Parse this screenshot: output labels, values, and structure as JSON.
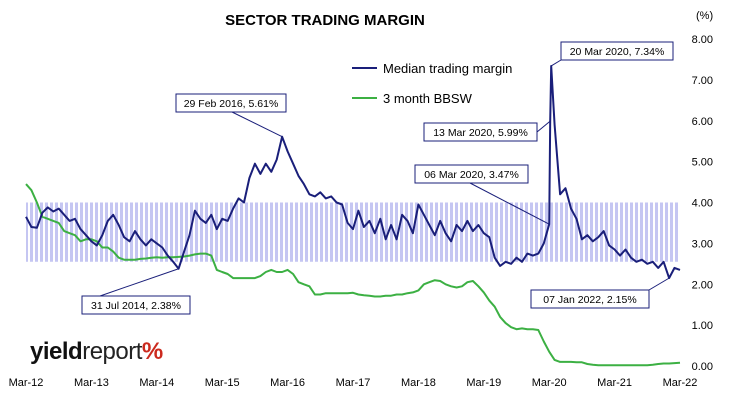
{
  "chart_data": {
    "type": "line",
    "title": "SECTOR TRADING MARGIN",
    "y_unit": "(%)",
    "ylim": [
      0,
      8
    ],
    "y_ticks": [
      "0.00",
      "1.00",
      "2.00",
      "3.00",
      "4.00",
      "5.00",
      "6.00",
      "7.00",
      "8.00"
    ],
    "x_ticks": [
      "Mar-12",
      "Mar-13",
      "Mar-14",
      "Mar-15",
      "Mar-16",
      "Mar-17",
      "Mar-18",
      "Mar-19",
      "Mar-20",
      "Mar-21",
      "Mar-22"
    ],
    "legend_position": "top-right",
    "shaded_band": {
      "from": 2.55,
      "to": 4.0,
      "x_start": "Mar-12",
      "x_end": "Mar-22",
      "color": "#c8c8f0"
    },
    "series": [
      {
        "name": "Median trading margin",
        "color": "#1a1f7a",
        "points": [
          [
            "2012-03",
            3.65
          ],
          [
            "2012-04",
            3.4
          ],
          [
            "2012-05",
            3.38
          ],
          [
            "2012-06",
            3.75
          ],
          [
            "2012-07",
            3.88
          ],
          [
            "2012-08",
            3.78
          ],
          [
            "2012-09",
            3.85
          ],
          [
            "2012-10",
            3.7
          ],
          [
            "2012-11",
            3.55
          ],
          [
            "2012-12",
            3.6
          ],
          [
            "2013-01",
            3.35
          ],
          [
            "2013-02",
            3.2
          ],
          [
            "2013-03",
            3.05
          ],
          [
            "2013-04",
            2.95
          ],
          [
            "2013-05",
            3.2
          ],
          [
            "2013-06",
            3.55
          ],
          [
            "2013-07",
            3.7
          ],
          [
            "2013-08",
            3.45
          ],
          [
            "2013-09",
            3.15
          ],
          [
            "2013-10",
            3.05
          ],
          [
            "2013-11",
            3.3
          ],
          [
            "2013-12",
            3.1
          ],
          [
            "2014-01",
            2.95
          ],
          [
            "2014-02",
            3.1
          ],
          [
            "2014-03",
            3.0
          ],
          [
            "2014-04",
            2.9
          ],
          [
            "2014-05",
            2.7
          ],
          [
            "2014-06",
            2.55
          ],
          [
            "2014-07",
            2.38
          ],
          [
            "2014-08",
            2.8
          ],
          [
            "2014-09",
            3.2
          ],
          [
            "2014-10",
            3.8
          ],
          [
            "2014-11",
            3.6
          ],
          [
            "2014-12",
            3.5
          ],
          [
            "2015-01",
            3.7
          ],
          [
            "2015-02",
            3.35
          ],
          [
            "2015-03",
            3.6
          ],
          [
            "2015-04",
            3.55
          ],
          [
            "2015-05",
            3.85
          ],
          [
            "2015-06",
            4.1
          ],
          [
            "2015-07",
            4.0
          ],
          [
            "2015-08",
            4.6
          ],
          [
            "2015-09",
            4.95
          ],
          [
            "2015-10",
            4.7
          ],
          [
            "2015-11",
            4.95
          ],
          [
            "2015-12",
            4.75
          ],
          [
            "2016-01",
            5.05
          ],
          [
            "2016-02",
            5.61
          ],
          [
            "2016-03",
            5.25
          ],
          [
            "2016-04",
            4.95
          ],
          [
            "2016-05",
            4.65
          ],
          [
            "2016-06",
            4.45
          ],
          [
            "2016-07",
            4.2
          ],
          [
            "2016-08",
            4.15
          ],
          [
            "2016-09",
            4.25
          ],
          [
            "2016-10",
            4.1
          ],
          [
            "2016-11",
            4.15
          ],
          [
            "2016-12",
            4.0
          ],
          [
            "2017-01",
            3.95
          ],
          [
            "2017-02",
            3.5
          ],
          [
            "2017-03",
            3.35
          ],
          [
            "2017-04",
            3.8
          ],
          [
            "2017-05",
            3.4
          ],
          [
            "2017-06",
            3.55
          ],
          [
            "2017-07",
            3.25
          ],
          [
            "2017-08",
            3.6
          ],
          [
            "2017-09",
            3.1
          ],
          [
            "2017-10",
            3.45
          ],
          [
            "2017-11",
            3.1
          ],
          [
            "2017-12",
            3.7
          ],
          [
            "2018-01",
            3.55
          ],
          [
            "2018-02",
            3.25
          ],
          [
            "2018-03",
            3.95
          ],
          [
            "2018-04",
            3.7
          ],
          [
            "2018-05",
            3.45
          ],
          [
            "2018-06",
            3.2
          ],
          [
            "2018-07",
            3.55
          ],
          [
            "2018-08",
            3.25
          ],
          [
            "2018-09",
            3.05
          ],
          [
            "2018-10",
            3.45
          ],
          [
            "2018-11",
            3.3
          ],
          [
            "2018-12",
            3.55
          ],
          [
            "2019-01",
            3.3
          ],
          [
            "2019-02",
            3.45
          ],
          [
            "2019-03",
            3.25
          ],
          [
            "2019-04",
            3.15
          ],
          [
            "2019-05",
            2.65
          ],
          [
            "2019-06",
            2.45
          ],
          [
            "2019-07",
            2.55
          ],
          [
            "2019-08",
            2.5
          ],
          [
            "2019-09",
            2.65
          ],
          [
            "2019-10",
            2.55
          ],
          [
            "2019-11",
            2.75
          ],
          [
            "2019-12",
            2.7
          ],
          [
            "2020-01",
            2.75
          ],
          [
            "2020-02",
            3.0
          ],
          [
            "2020-03",
            3.47
          ],
          [
            "2020-03",
            5.99
          ],
          [
            "2020-03",
            7.34
          ],
          [
            "2020-04",
            5.9
          ],
          [
            "2020-05",
            4.2
          ],
          [
            "2020-06",
            4.35
          ],
          [
            "2020-07",
            3.85
          ],
          [
            "2020-08",
            3.6
          ],
          [
            "2020-09",
            3.1
          ],
          [
            "2020-10",
            3.2
          ],
          [
            "2020-11",
            3.05
          ],
          [
            "2020-12",
            3.15
          ],
          [
            "2021-01",
            3.3
          ],
          [
            "2021-02",
            2.95
          ],
          [
            "2021-03",
            2.85
          ],
          [
            "2021-04",
            2.7
          ],
          [
            "2021-05",
            2.85
          ],
          [
            "2021-06",
            2.65
          ],
          [
            "2021-07",
            2.55
          ],
          [
            "2021-08",
            2.6
          ],
          [
            "2021-09",
            2.5
          ],
          [
            "2021-10",
            2.55
          ],
          [
            "2021-11",
            2.4
          ],
          [
            "2021-12",
            2.55
          ],
          [
            "2022-01",
            2.15
          ],
          [
            "2022-02",
            2.4
          ],
          [
            "2022-03",
            2.35
          ]
        ]
      },
      {
        "name": "3 month BBSW",
        "color": "#3cb043",
        "points": [
          [
            "2012-03",
            4.45
          ],
          [
            "2012-04",
            4.3
          ],
          [
            "2012-05",
            4.0
          ],
          [
            "2012-06",
            3.65
          ],
          [
            "2012-07",
            3.6
          ],
          [
            "2012-08",
            3.55
          ],
          [
            "2012-09",
            3.5
          ],
          [
            "2012-10",
            3.3
          ],
          [
            "2012-11",
            3.25
          ],
          [
            "2012-12",
            3.2
          ],
          [
            "2013-01",
            3.05
          ],
          [
            "2013-02",
            3.1
          ],
          [
            "2013-03",
            3.1
          ],
          [
            "2013-04",
            3.05
          ],
          [
            "2013-05",
            2.9
          ],
          [
            "2013-06",
            2.9
          ],
          [
            "2013-07",
            2.8
          ],
          [
            "2013-08",
            2.65
          ],
          [
            "2013-09",
            2.6
          ],
          [
            "2013-10",
            2.6
          ],
          [
            "2013-11",
            2.6
          ],
          [
            "2013-12",
            2.62
          ],
          [
            "2014-01",
            2.63
          ],
          [
            "2014-02",
            2.65
          ],
          [
            "2014-03",
            2.66
          ],
          [
            "2014-04",
            2.65
          ],
          [
            "2014-05",
            2.66
          ],
          [
            "2014-06",
            2.66
          ],
          [
            "2014-07",
            2.67
          ],
          [
            "2014-08",
            2.68
          ],
          [
            "2014-09",
            2.7
          ],
          [
            "2014-10",
            2.73
          ],
          [
            "2014-11",
            2.75
          ],
          [
            "2014-12",
            2.75
          ],
          [
            "2015-01",
            2.7
          ],
          [
            "2015-02",
            2.35
          ],
          [
            "2015-03",
            2.3
          ],
          [
            "2015-04",
            2.25
          ],
          [
            "2015-05",
            2.15
          ],
          [
            "2015-06",
            2.15
          ],
          [
            "2015-07",
            2.15
          ],
          [
            "2015-08",
            2.15
          ],
          [
            "2015-09",
            2.15
          ],
          [
            "2015-10",
            2.2
          ],
          [
            "2015-11",
            2.3
          ],
          [
            "2015-12",
            2.35
          ],
          [
            "2016-01",
            2.3
          ],
          [
            "2016-02",
            2.3
          ],
          [
            "2016-03",
            2.35
          ],
          [
            "2016-04",
            2.25
          ],
          [
            "2016-05",
            2.05
          ],
          [
            "2016-06",
            2.0
          ],
          [
            "2016-07",
            1.95
          ],
          [
            "2016-08",
            1.75
          ],
          [
            "2016-09",
            1.75
          ],
          [
            "2016-10",
            1.78
          ],
          [
            "2016-11",
            1.78
          ],
          [
            "2016-12",
            1.78
          ],
          [
            "2017-01",
            1.78
          ],
          [
            "2017-02",
            1.78
          ],
          [
            "2017-03",
            1.79
          ],
          [
            "2017-04",
            1.75
          ],
          [
            "2017-05",
            1.73
          ],
          [
            "2017-06",
            1.72
          ],
          [
            "2017-07",
            1.7
          ],
          [
            "2017-08",
            1.7
          ],
          [
            "2017-09",
            1.72
          ],
          [
            "2017-10",
            1.72
          ],
          [
            "2017-11",
            1.75
          ],
          [
            "2017-12",
            1.75
          ],
          [
            "2018-01",
            1.78
          ],
          [
            "2018-02",
            1.8
          ],
          [
            "2018-03",
            1.85
          ],
          [
            "2018-04",
            2.0
          ],
          [
            "2018-05",
            2.05
          ],
          [
            "2018-06",
            2.1
          ],
          [
            "2018-07",
            2.08
          ],
          [
            "2018-08",
            2.0
          ],
          [
            "2018-09",
            1.95
          ],
          [
            "2018-10",
            1.92
          ],
          [
            "2018-11",
            1.95
          ],
          [
            "2018-12",
            2.05
          ],
          [
            "2019-01",
            2.08
          ],
          [
            "2019-02",
            1.95
          ],
          [
            "2019-03",
            1.8
          ],
          [
            "2019-04",
            1.6
          ],
          [
            "2019-05",
            1.45
          ],
          [
            "2019-06",
            1.2
          ],
          [
            "2019-07",
            1.05
          ],
          [
            "2019-08",
            0.95
          ],
          [
            "2019-09",
            0.9
          ],
          [
            "2019-10",
            0.92
          ],
          [
            "2019-11",
            0.9
          ],
          [
            "2019-12",
            0.9
          ],
          [
            "2020-01",
            0.88
          ],
          [
            "2020-02",
            0.6
          ],
          [
            "2020-03",
            0.35
          ],
          [
            "2020-04",
            0.15
          ],
          [
            "2020-05",
            0.1
          ],
          [
            "2020-06",
            0.1
          ],
          [
            "2020-07",
            0.1
          ],
          [
            "2020-08",
            0.09
          ],
          [
            "2020-09",
            0.09
          ],
          [
            "2020-10",
            0.05
          ],
          [
            "2020-11",
            0.03
          ],
          [
            "2020-12",
            0.02
          ],
          [
            "2021-01",
            0.02
          ],
          [
            "2021-02",
            0.02
          ],
          [
            "2021-03",
            0.02
          ],
          [
            "2021-04",
            0.02
          ],
          [
            "2021-05",
            0.02
          ],
          [
            "2021-06",
            0.02
          ],
          [
            "2021-07",
            0.02
          ],
          [
            "2021-08",
            0.02
          ],
          [
            "2021-09",
            0.02
          ],
          [
            "2021-10",
            0.03
          ],
          [
            "2021-11",
            0.05
          ],
          [
            "2021-12",
            0.06
          ],
          [
            "2022-01",
            0.06
          ],
          [
            "2022-02",
            0.07
          ],
          [
            "2022-03",
            0.08
          ]
        ]
      }
    ],
    "annotations": [
      {
        "label": "29 Feb 2016, 5.61%",
        "date": "2016-02",
        "value": 5.61
      },
      {
        "label": "20 Mar 2020, 7.34%",
        "date": "2020-03",
        "value": 7.34
      },
      {
        "label": "13 Mar 2020, 5.99%",
        "date": "2020-03",
        "value": 5.99
      },
      {
        "label": "06 Mar 2020, 3.47%",
        "date": "2020-03",
        "value": 3.47
      },
      {
        "label": "31 Jul 2014, 2.38%",
        "date": "2014-07",
        "value": 2.38
      },
      {
        "label": "07 Jan 2022, 2.15%",
        "date": "2022-01",
        "value": 2.15
      }
    ]
  },
  "logo": {
    "part1": "yield",
    "part2": "report",
    "part3": "%"
  }
}
